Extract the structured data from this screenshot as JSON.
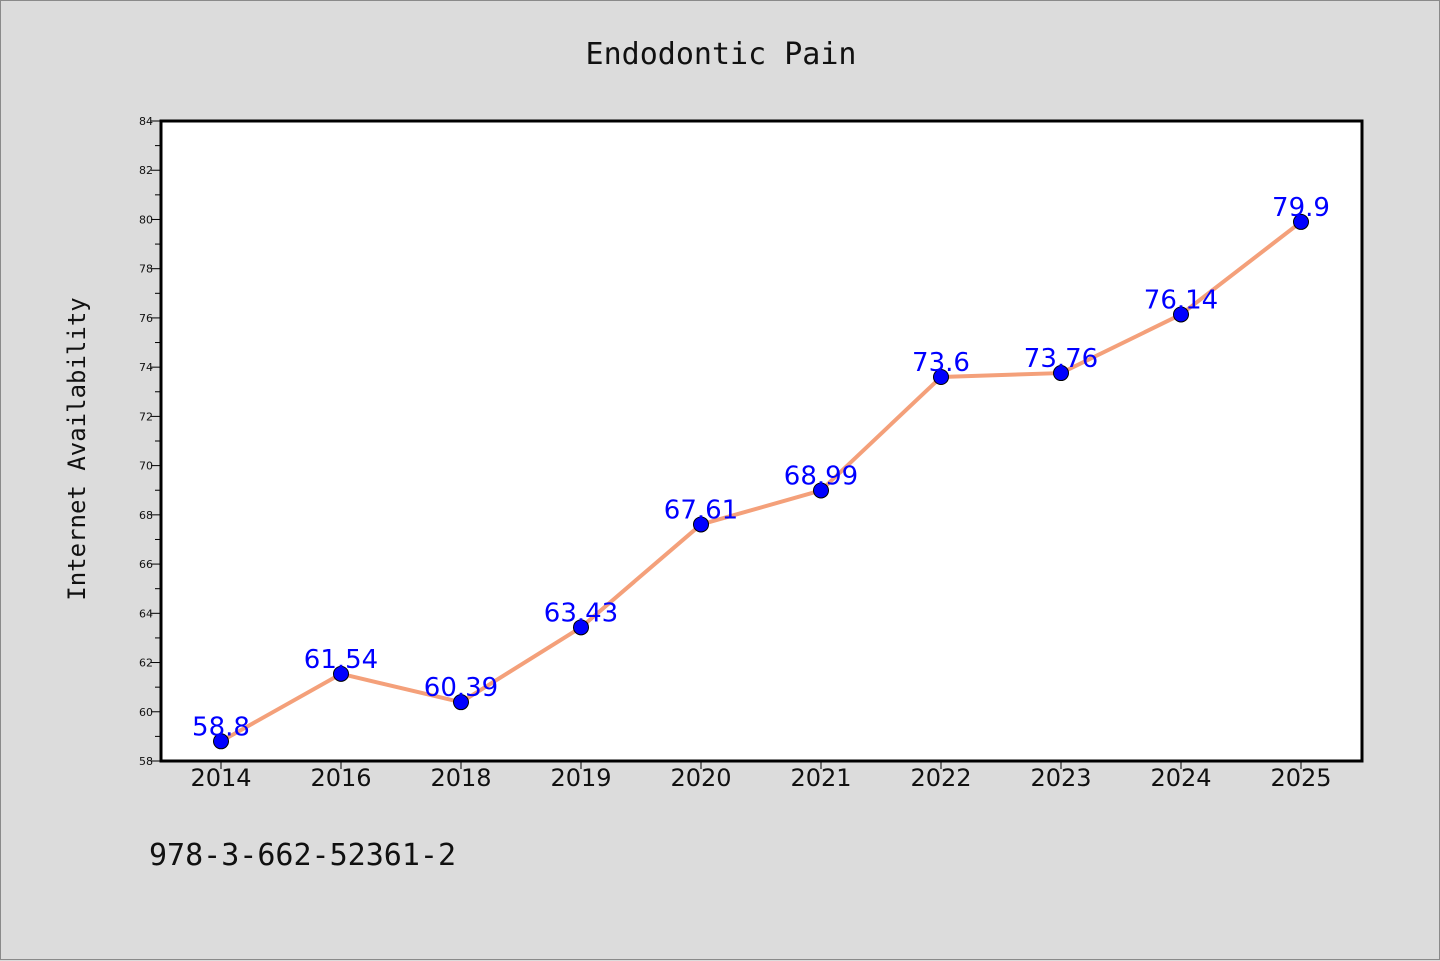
{
  "chart_data": {
    "type": "line",
    "title": "Endodontic Pain",
    "xlabel": "",
    "ylabel": "Internet Availability",
    "categories": [
      "2014",
      "2016",
      "2018",
      "2019",
      "2020",
      "2021",
      "2022",
      "2023",
      "2024",
      "2025"
    ],
    "values": [
      58.8,
      61.54,
      60.39,
      63.43,
      67.61,
      68.99,
      73.6,
      73.76,
      76.14,
      79.9
    ],
    "data_labels": [
      "58.8",
      "61.54",
      "60.39",
      "63.43",
      "67.61",
      "68.99",
      "73.6",
      "73.76",
      "76.14",
      "79.9"
    ],
    "ylim": [
      58,
      84
    ],
    "yticks": [
      58,
      60,
      62,
      64,
      66,
      68,
      70,
      72,
      74,
      76,
      78,
      80,
      82,
      84
    ],
    "grid": false,
    "line_color": "#f4a07a",
    "marker_color": "#0000ff",
    "label_color": "#0000ff"
  },
  "annotation": "978-3-662-52361-2"
}
